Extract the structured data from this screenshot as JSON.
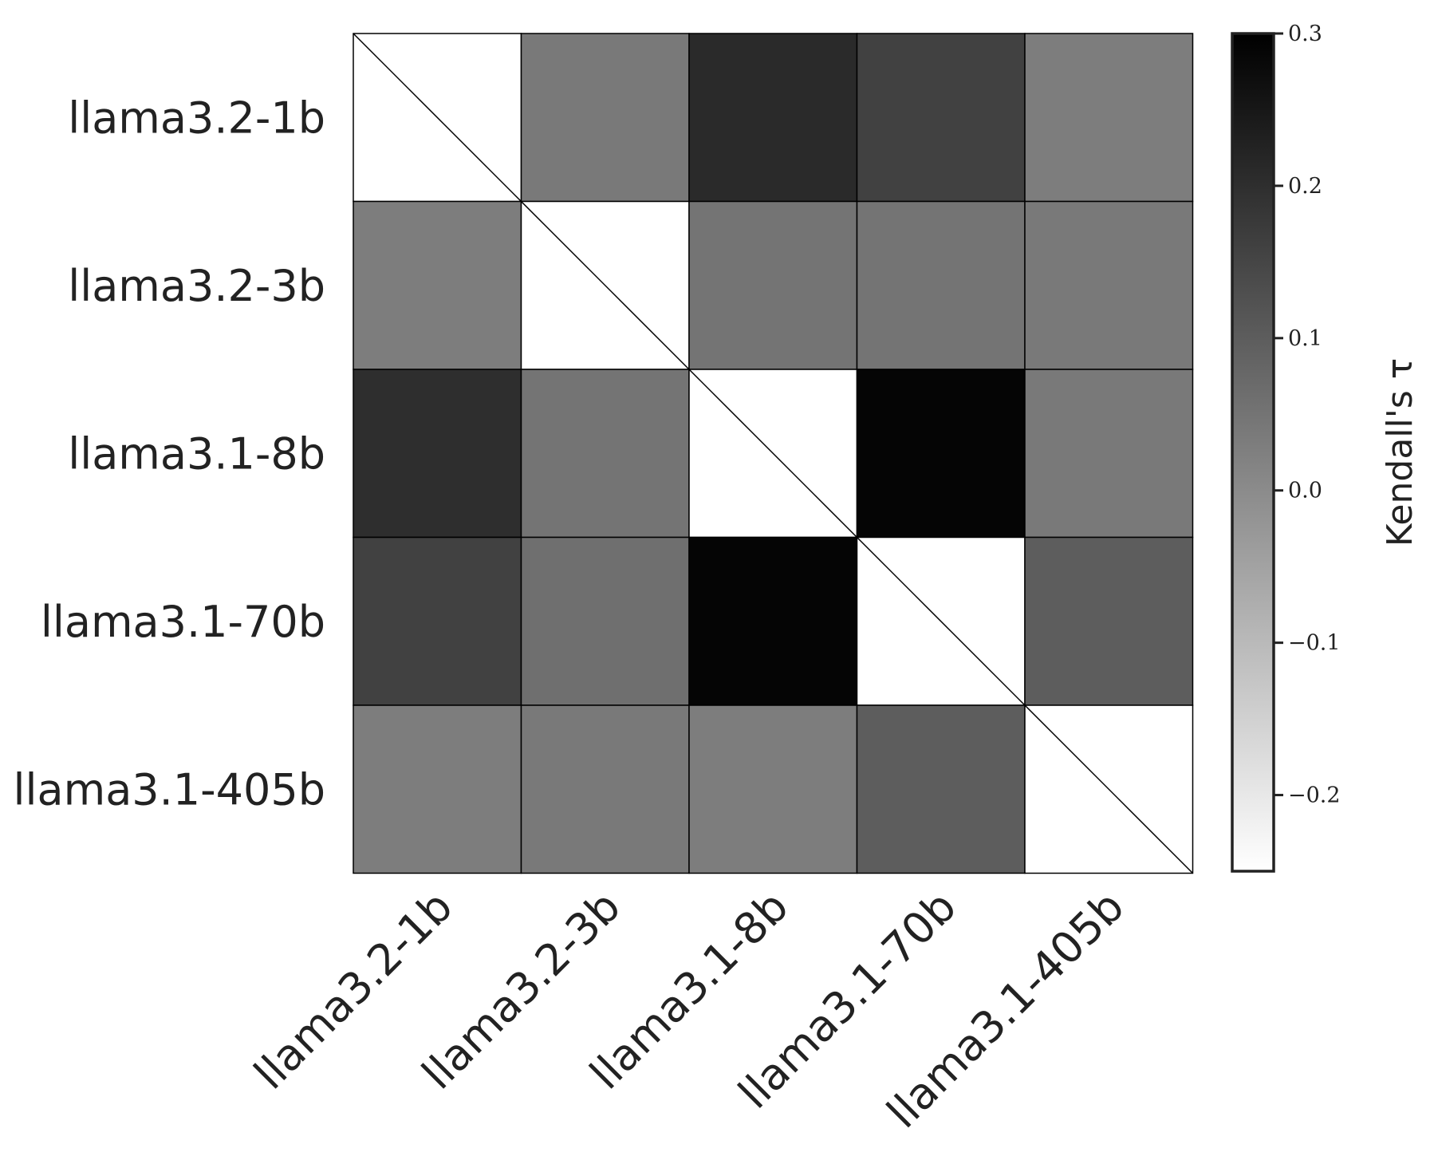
{
  "chart_data": {
    "type": "heatmap",
    "rows": [
      "llama3.2-1b",
      "llama3.2-3b",
      "llama3.1-8b",
      "llama3.1-70b",
      "llama3.1-405b"
    ],
    "columns": [
      "llama3.2-1b",
      "llama3.2-3b",
      "llama3.1-8b",
      "llama3.1-70b",
      "llama3.1-405b"
    ],
    "values": [
      [
        null,
        0.04,
        0.21,
        0.16,
        0.03
      ],
      [
        0.03,
        null,
        0.05,
        0.05,
        0.04
      ],
      [
        0.2,
        0.05,
        null,
        0.29,
        0.04
      ],
      [
        0.16,
        0.06,
        0.29,
        null,
        0.1
      ],
      [
        0.03,
        0.04,
        0.03,
        0.1,
        null
      ]
    ],
    "diagonal": "masked",
    "colormap": "Greys",
    "vmin": -0.25,
    "vmax": 0.3,
    "colorbar": {
      "label": "Kendall's τ",
      "ticks": [
        0.3,
        0.2,
        0.1,
        0.0,
        -0.1,
        -0.2
      ],
      "tick_labels": [
        "0.3",
        "0.2",
        "0.1",
        "0.0",
        "−0.1",
        "−0.2"
      ]
    }
  }
}
